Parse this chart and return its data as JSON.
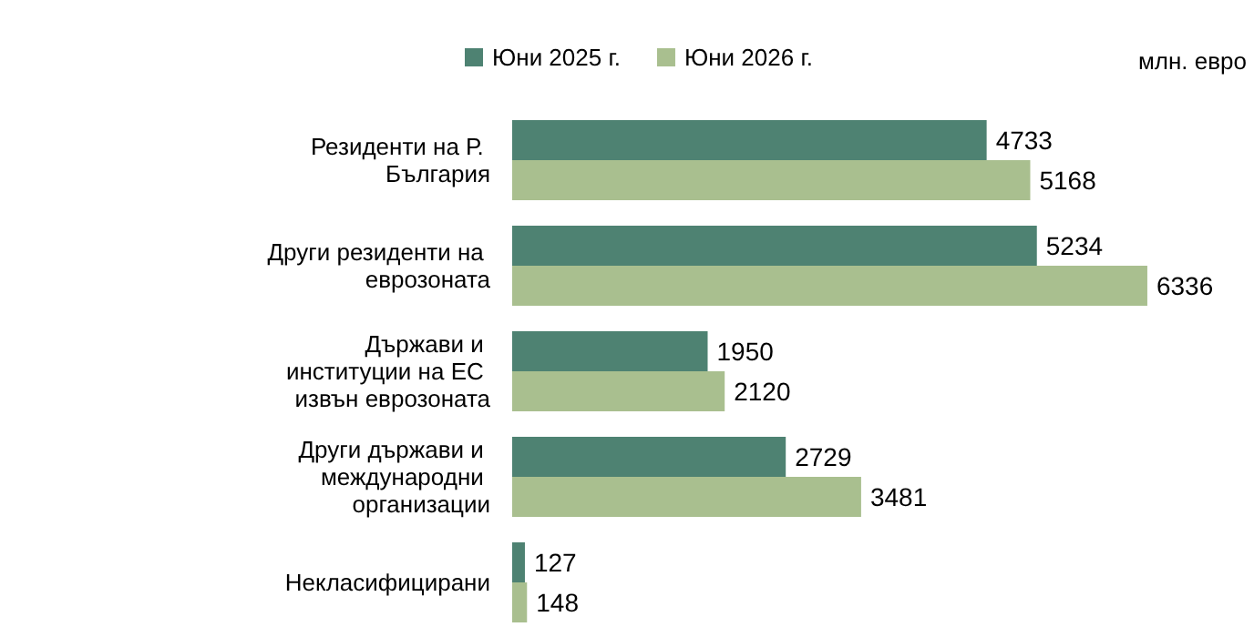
{
  "chart_data": {
    "type": "bar",
    "orientation": "horizontal",
    "categories": [
      "Резиденти на Р. България",
      "Други резиденти на еврозоната",
      "Държави и институции на ЕС извън еврозоната",
      "Други държави и международни организации",
      "Некласифицирани"
    ],
    "series": [
      {
        "name": "Юни 2025 г.",
        "color": "#4e8272",
        "values": [
          4733,
          5234,
          1950,
          2729,
          127
        ]
      },
      {
        "name": "Юни 2026 г.",
        "color": "#a9bf8f",
        "values": [
          5168,
          6336,
          2120,
          3481,
          148
        ]
      }
    ],
    "data_labels": true,
    "legend": "top",
    "tick_labels": "y",
    "annotations": [
      "млн. евро"
    ]
  }
}
